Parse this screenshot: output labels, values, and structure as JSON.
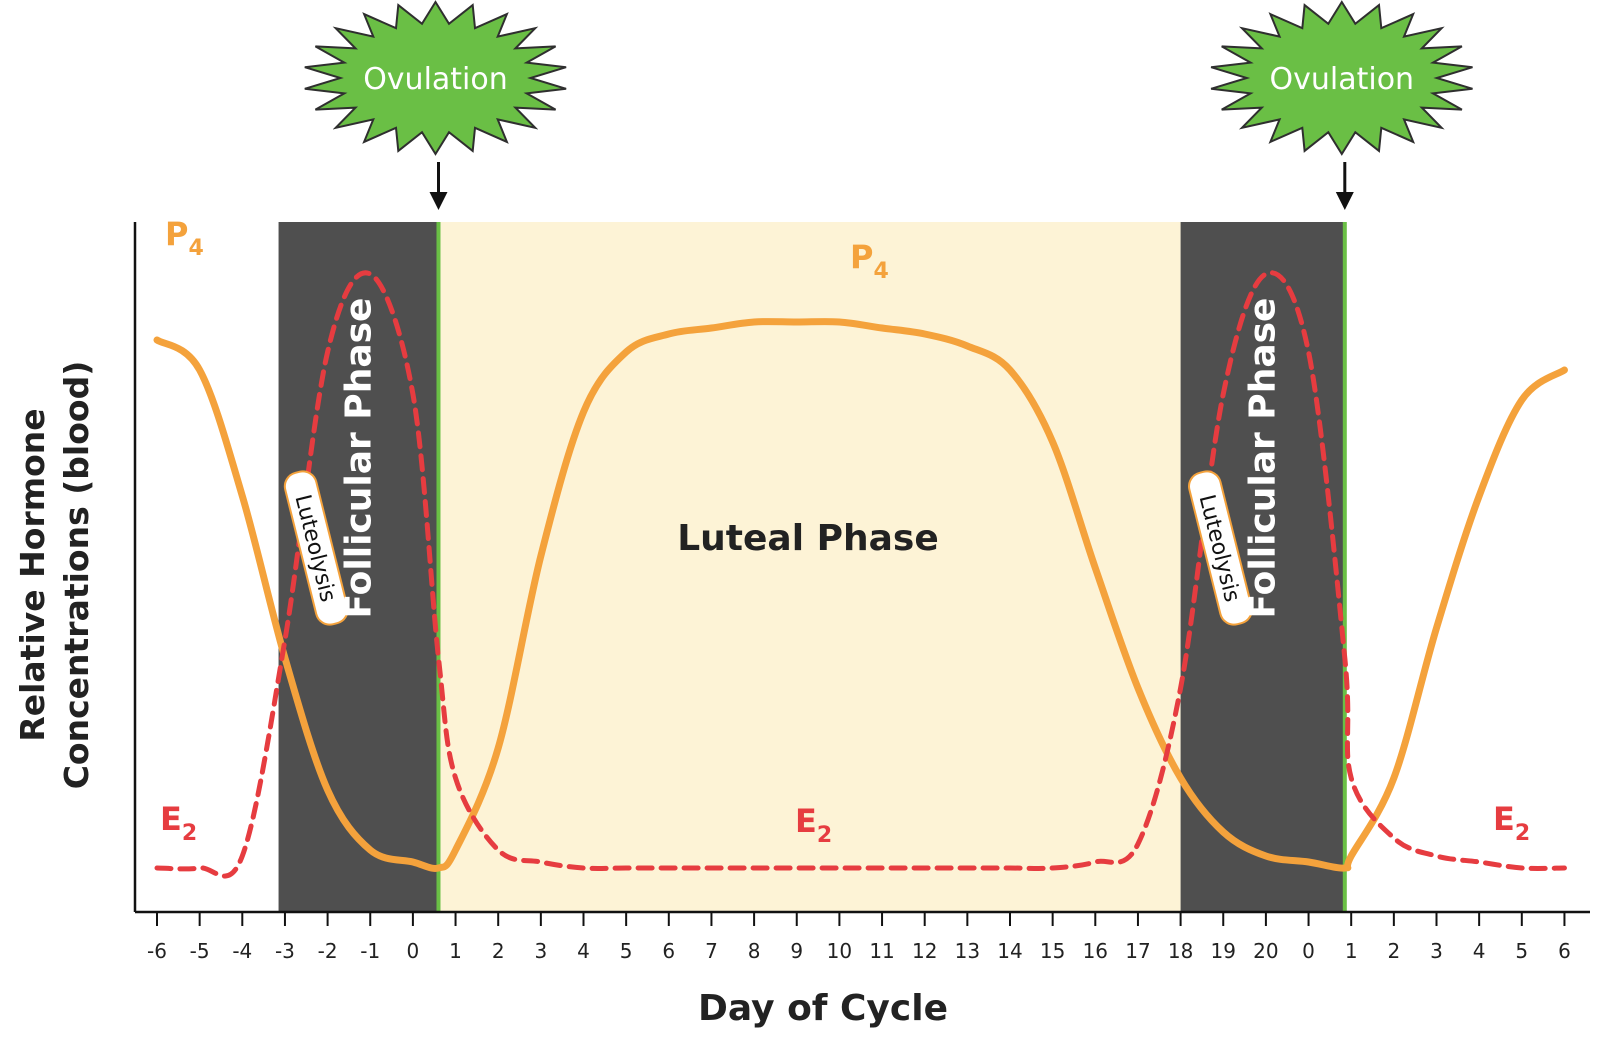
{
  "chart_data": {
    "type": "line",
    "xlabel": "Day of Cycle",
    "ylabel_lines": [
      "Relative Hormone",
      "Concentrations (blood)"
    ],
    "ticks": [
      "-6",
      "-5",
      "-4",
      "-3",
      "-2",
      "-1",
      "0",
      "1",
      "2",
      "3",
      "4",
      "5",
      "6",
      "7",
      "8",
      "9",
      "10",
      "11",
      "12",
      "13",
      "14",
      "15",
      "16",
      "17",
      "18",
      "19",
      "20",
      "0",
      "1",
      "2",
      "3",
      "4",
      "5",
      "6"
    ],
    "phases": [
      {
        "name": "Follicular Phase",
        "start_index": 2.85,
        "end_index": 6.6,
        "color": "#4f4f4f",
        "label": "Follicular Phase"
      },
      {
        "name": "Luteal Phase",
        "start_index": 6.6,
        "end_index": 24.0,
        "color": "#fdf3d6",
        "label": "Luteal Phase"
      },
      {
        "name": "Follicular Phase",
        "start_index": 24.0,
        "end_index": 27.85,
        "color": "#4f4f4f",
        "label": "Follicular Phase"
      }
    ],
    "events": [
      {
        "label": "Ovulation",
        "at_index": 6.6,
        "color": "#6abf45"
      },
      {
        "label": "Ovulation",
        "at_index": 27.85,
        "color": "#6abf45"
      }
    ],
    "annotations": [
      {
        "text": "Luteolysis",
        "at_index": 3.5
      },
      {
        "text": "Luteolysis",
        "at_index": 24.7
      }
    ],
    "series": [
      {
        "name": "P4",
        "subscript": "4",
        "base": "P",
        "color": "#f4a23c",
        "style": "solid",
        "x": [
          0,
          1,
          2,
          3,
          4,
          5,
          6,
          6.6,
          7,
          8,
          9,
          10,
          11,
          12,
          13,
          14,
          15,
          16,
          17,
          18,
          19,
          20,
          21,
          22,
          23,
          24,
          25,
          26,
          27,
          27.85,
          28,
          29,
          30,
          31,
          32,
          33
        ],
        "values": [
          0.88,
          0.83,
          0.62,
          0.35,
          0.13,
          0.03,
          0.01,
          0.0,
          0.03,
          0.2,
          0.52,
          0.76,
          0.86,
          0.89,
          0.9,
          0.91,
          0.91,
          0.91,
          0.9,
          0.89,
          0.87,
          0.83,
          0.71,
          0.5,
          0.3,
          0.15,
          0.06,
          0.02,
          0.01,
          0.0,
          0.02,
          0.15,
          0.4,
          0.62,
          0.78,
          0.83
        ]
      },
      {
        "name": "E2",
        "subscript": "2",
        "base": "E",
        "color": "#e63c40",
        "style": "dashed",
        "x": [
          0,
          1,
          2,
          3,
          4,
          5,
          6,
          6.6,
          7,
          8,
          9,
          10,
          11,
          12,
          13,
          14,
          15,
          16,
          17,
          18,
          19,
          20,
          21,
          22,
          23,
          24,
          25,
          26,
          27,
          27.85,
          28,
          29,
          30,
          31,
          32,
          33
        ],
        "values": [
          0.0,
          0.0,
          0.02,
          0.38,
          0.86,
          0.99,
          0.79,
          0.35,
          0.15,
          0.03,
          0.01,
          0.0,
          0.0,
          0.0,
          0.0,
          0.0,
          0.0,
          0.0,
          0.0,
          0.0,
          0.0,
          0.0,
          0.0,
          0.01,
          0.04,
          0.3,
          0.79,
          0.99,
          0.86,
          0.35,
          0.15,
          0.05,
          0.02,
          0.01,
          0.0,
          0.0
        ]
      }
    ],
    "series_labels": [
      {
        "series": "P4",
        "pos": "left-top"
      },
      {
        "series": "P4",
        "pos": "center-top"
      },
      {
        "series": "E2",
        "pos": "left-bottom"
      },
      {
        "series": "E2",
        "pos": "center-bottom"
      },
      {
        "series": "E2",
        "pos": "right-bottom"
      }
    ],
    "ylim": [
      0,
      1
    ],
    "grid": false
  }
}
